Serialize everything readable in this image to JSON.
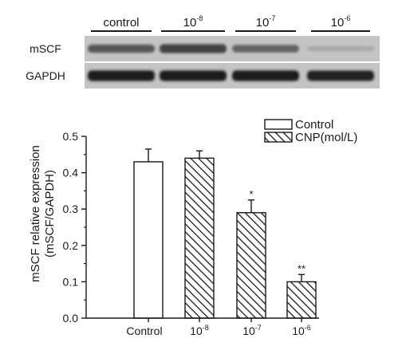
{
  "blot": {
    "lane_labels": [
      {
        "base": "control",
        "exp": ""
      },
      {
        "base": "10",
        "exp": "-8"
      },
      {
        "base": "10",
        "exp": "-7"
      },
      {
        "base": "10",
        "exp": "-6"
      }
    ],
    "rows": [
      {
        "label": "mSCF",
        "intensity": [
          0.62,
          0.72,
          0.55,
          0.18
        ]
      },
      {
        "label": "GAPDH",
        "intensity": [
          0.92,
          0.92,
          0.92,
          0.9
        ]
      }
    ]
  },
  "chart_data": {
    "type": "bar",
    "categories": [
      {
        "base": "Control",
        "exp": ""
      },
      {
        "base": "10",
        "exp": "-8"
      },
      {
        "base": "10",
        "exp": "-7"
      },
      {
        "base": "10",
        "exp": "-6"
      }
    ],
    "values": [
      0.43,
      0.44,
      0.29,
      0.1
    ],
    "errors": [
      0.035,
      0.02,
      0.035,
      0.02
    ],
    "significance": [
      "",
      "",
      "*",
      "**"
    ],
    "group": [
      "Control",
      "CNP(mol/L)",
      "CNP(mol/L)",
      "CNP(mol/L)"
    ],
    "legend": [
      {
        "name": "Control",
        "pattern": "open"
      },
      {
        "name": "CNP(mol/L)",
        "pattern": "hatched"
      }
    ],
    "legend_position": "top-right",
    "ylabel_line1": "mSCF relative expression",
    "ylabel_line2": "(mSCF/GAPDH)",
    "xlabel": "",
    "ylim": [
      0,
      0.5
    ],
    "yticks": [
      "0.0",
      "0.1",
      "0.2",
      "0.3",
      "0.4",
      "0.5"
    ],
    "grid": false
  }
}
